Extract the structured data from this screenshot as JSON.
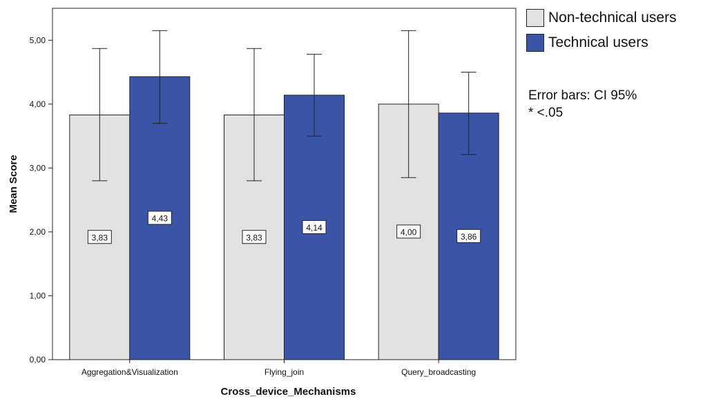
{
  "chart_data": {
    "type": "bar",
    "title": "",
    "xlabel": "Cross_device_Mechanisms",
    "ylabel": "Mean Score",
    "ylim": [
      0,
      5.5
    ],
    "yticks": [
      "0,00",
      "1,00",
      "2,00",
      "3,00",
      "4,00",
      "5,00"
    ],
    "categories": [
      "Aggregation&Visualization",
      "Flying_join",
      "Query_broadcasting"
    ],
    "series": [
      {
        "name": "Non-technical users",
        "color": "#e2e2e2",
        "values": [
          3.83,
          3.83,
          4.0
        ],
        "value_labels": [
          "3,83",
          "3,83",
          "4,00"
        ],
        "ci_low": [
          2.8,
          2.8,
          2.85
        ],
        "ci_high": [
          4.87,
          4.87,
          5.15
        ]
      },
      {
        "name": "Technical users",
        "color": "#3a55a8",
        "values": [
          4.43,
          4.14,
          3.86
        ],
        "value_labels": [
          "4,43",
          "4,14",
          "3,86"
        ],
        "ci_low": [
          3.7,
          3.5,
          3.21
        ],
        "ci_high": [
          5.15,
          4.78,
          4.5
        ]
      }
    ],
    "grid": false,
    "legend_position": "top-right",
    "annotations": [
      "Error bars: CI 95%",
      "* <.05"
    ]
  }
}
